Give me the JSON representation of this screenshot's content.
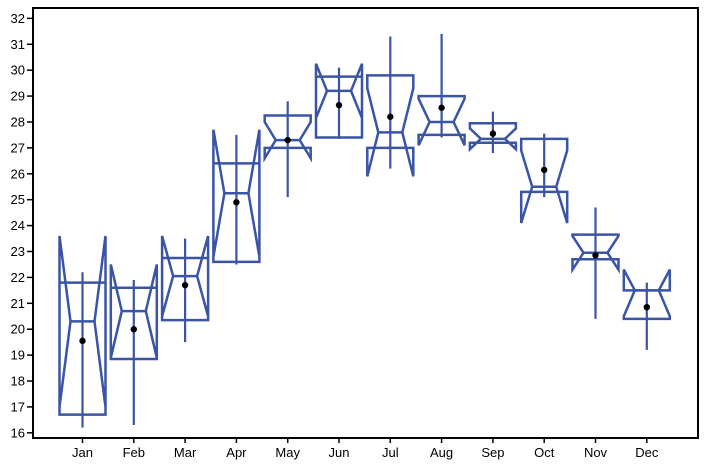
{
  "chart_data": {
    "type": "box",
    "title": "",
    "xlabel": "",
    "ylabel": "",
    "ylim": [
      15.8,
      32.4
    ],
    "y_ticks": [
      16,
      17,
      18,
      19,
      20,
      21,
      22,
      23,
      24,
      25,
      26,
      27,
      28,
      29,
      30,
      31,
      32
    ],
    "y_tick_labels": [
      "16",
      "17",
      "18",
      "19",
      "20",
      "21",
      "22",
      "23",
      "24",
      "25",
      "26",
      "27",
      "28",
      "29",
      "30",
      "31",
      "32"
    ],
    "categories": [
      "Jan",
      "Feb",
      "Mar",
      "Apr",
      "May",
      "Jun",
      "Jul",
      "Aug",
      "Sep",
      "Oct",
      "Nov",
      "Dec"
    ],
    "boxes": [
      {
        "label": "Jan",
        "min": 16.2,
        "q1": 16.7,
        "median": 20.3,
        "q3": 21.8,
        "max": 22.2,
        "notch_low": 23.6,
        "notch_high": 17.0,
        "mean": 19.55
      },
      {
        "label": "Feb",
        "min": 16.3,
        "q1": 18.85,
        "median": 20.7,
        "q3": 21.6,
        "max": 21.9,
        "notch_low": 22.5,
        "notch_high": 18.9,
        "mean": 20.0
      },
      {
        "label": "Mar",
        "min": 19.5,
        "q1": 20.35,
        "median": 22.05,
        "q3": 22.75,
        "max": 23.5,
        "notch_low": 23.6,
        "notch_high": 20.5,
        "mean": 21.7
      },
      {
        "label": "Apr",
        "min": 22.5,
        "q1": 22.6,
        "median": 25.25,
        "q3": 26.4,
        "max": 27.5,
        "notch_low": 27.7,
        "notch_high": 22.8,
        "mean": 24.9
      },
      {
        "label": "May",
        "min": 25.1,
        "q1": 27.0,
        "median": 27.3,
        "q3": 28.25,
        "max": 28.8,
        "notch_low": 26.6,
        "notch_high": 28.0,
        "mean": 27.3
      },
      {
        "label": "Jun",
        "min": 27.35,
        "q1": 27.4,
        "median": 29.2,
        "q3": 29.75,
        "max": 30.1,
        "notch_low": 30.25,
        "notch_high": 28.15,
        "mean": 28.65
      },
      {
        "label": "Jul",
        "min": 26.2,
        "q1": 27.0,
        "median": 27.6,
        "q3": 29.8,
        "max": 31.3,
        "notch_low": 25.9,
        "notch_high": 29.3,
        "mean": 28.2
      },
      {
        "label": "Aug",
        "min": 27.4,
        "q1": 27.5,
        "median": 28.0,
        "q3": 29.0,
        "max": 31.4,
        "notch_low": 27.1,
        "notch_high": 28.9,
        "mean": 28.55
      },
      {
        "label": "Sep",
        "min": 26.8,
        "q1": 27.2,
        "median": 27.35,
        "q3": 27.95,
        "max": 28.4,
        "notch_low": 26.95,
        "notch_high": 27.75,
        "mean": 27.55
      },
      {
        "label": "Oct",
        "min": 25.1,
        "q1": 25.3,
        "median": 25.5,
        "q3": 27.35,
        "max": 27.55,
        "notch_low": 24.1,
        "notch_high": 26.9,
        "mean": 26.15
      },
      {
        "label": "Nov",
        "min": 20.4,
        "q1": 22.7,
        "median": 22.95,
        "q3": 23.65,
        "max": 24.7,
        "notch_low": 22.3,
        "notch_high": 23.6,
        "mean": 22.85
      },
      {
        "label": "Dec",
        "min": 19.2,
        "q1": 20.4,
        "median": 21.5,
        "q3": 21.5,
        "max": 21.8,
        "notch_low": 20.5,
        "notch_high": 22.3,
        "mean": 20.85
      }
    ],
    "grid": false,
    "legend": "none",
    "colors": {
      "box": "#3a54a6",
      "mean_dot": "#000000",
      "axis": "#000000"
    }
  }
}
